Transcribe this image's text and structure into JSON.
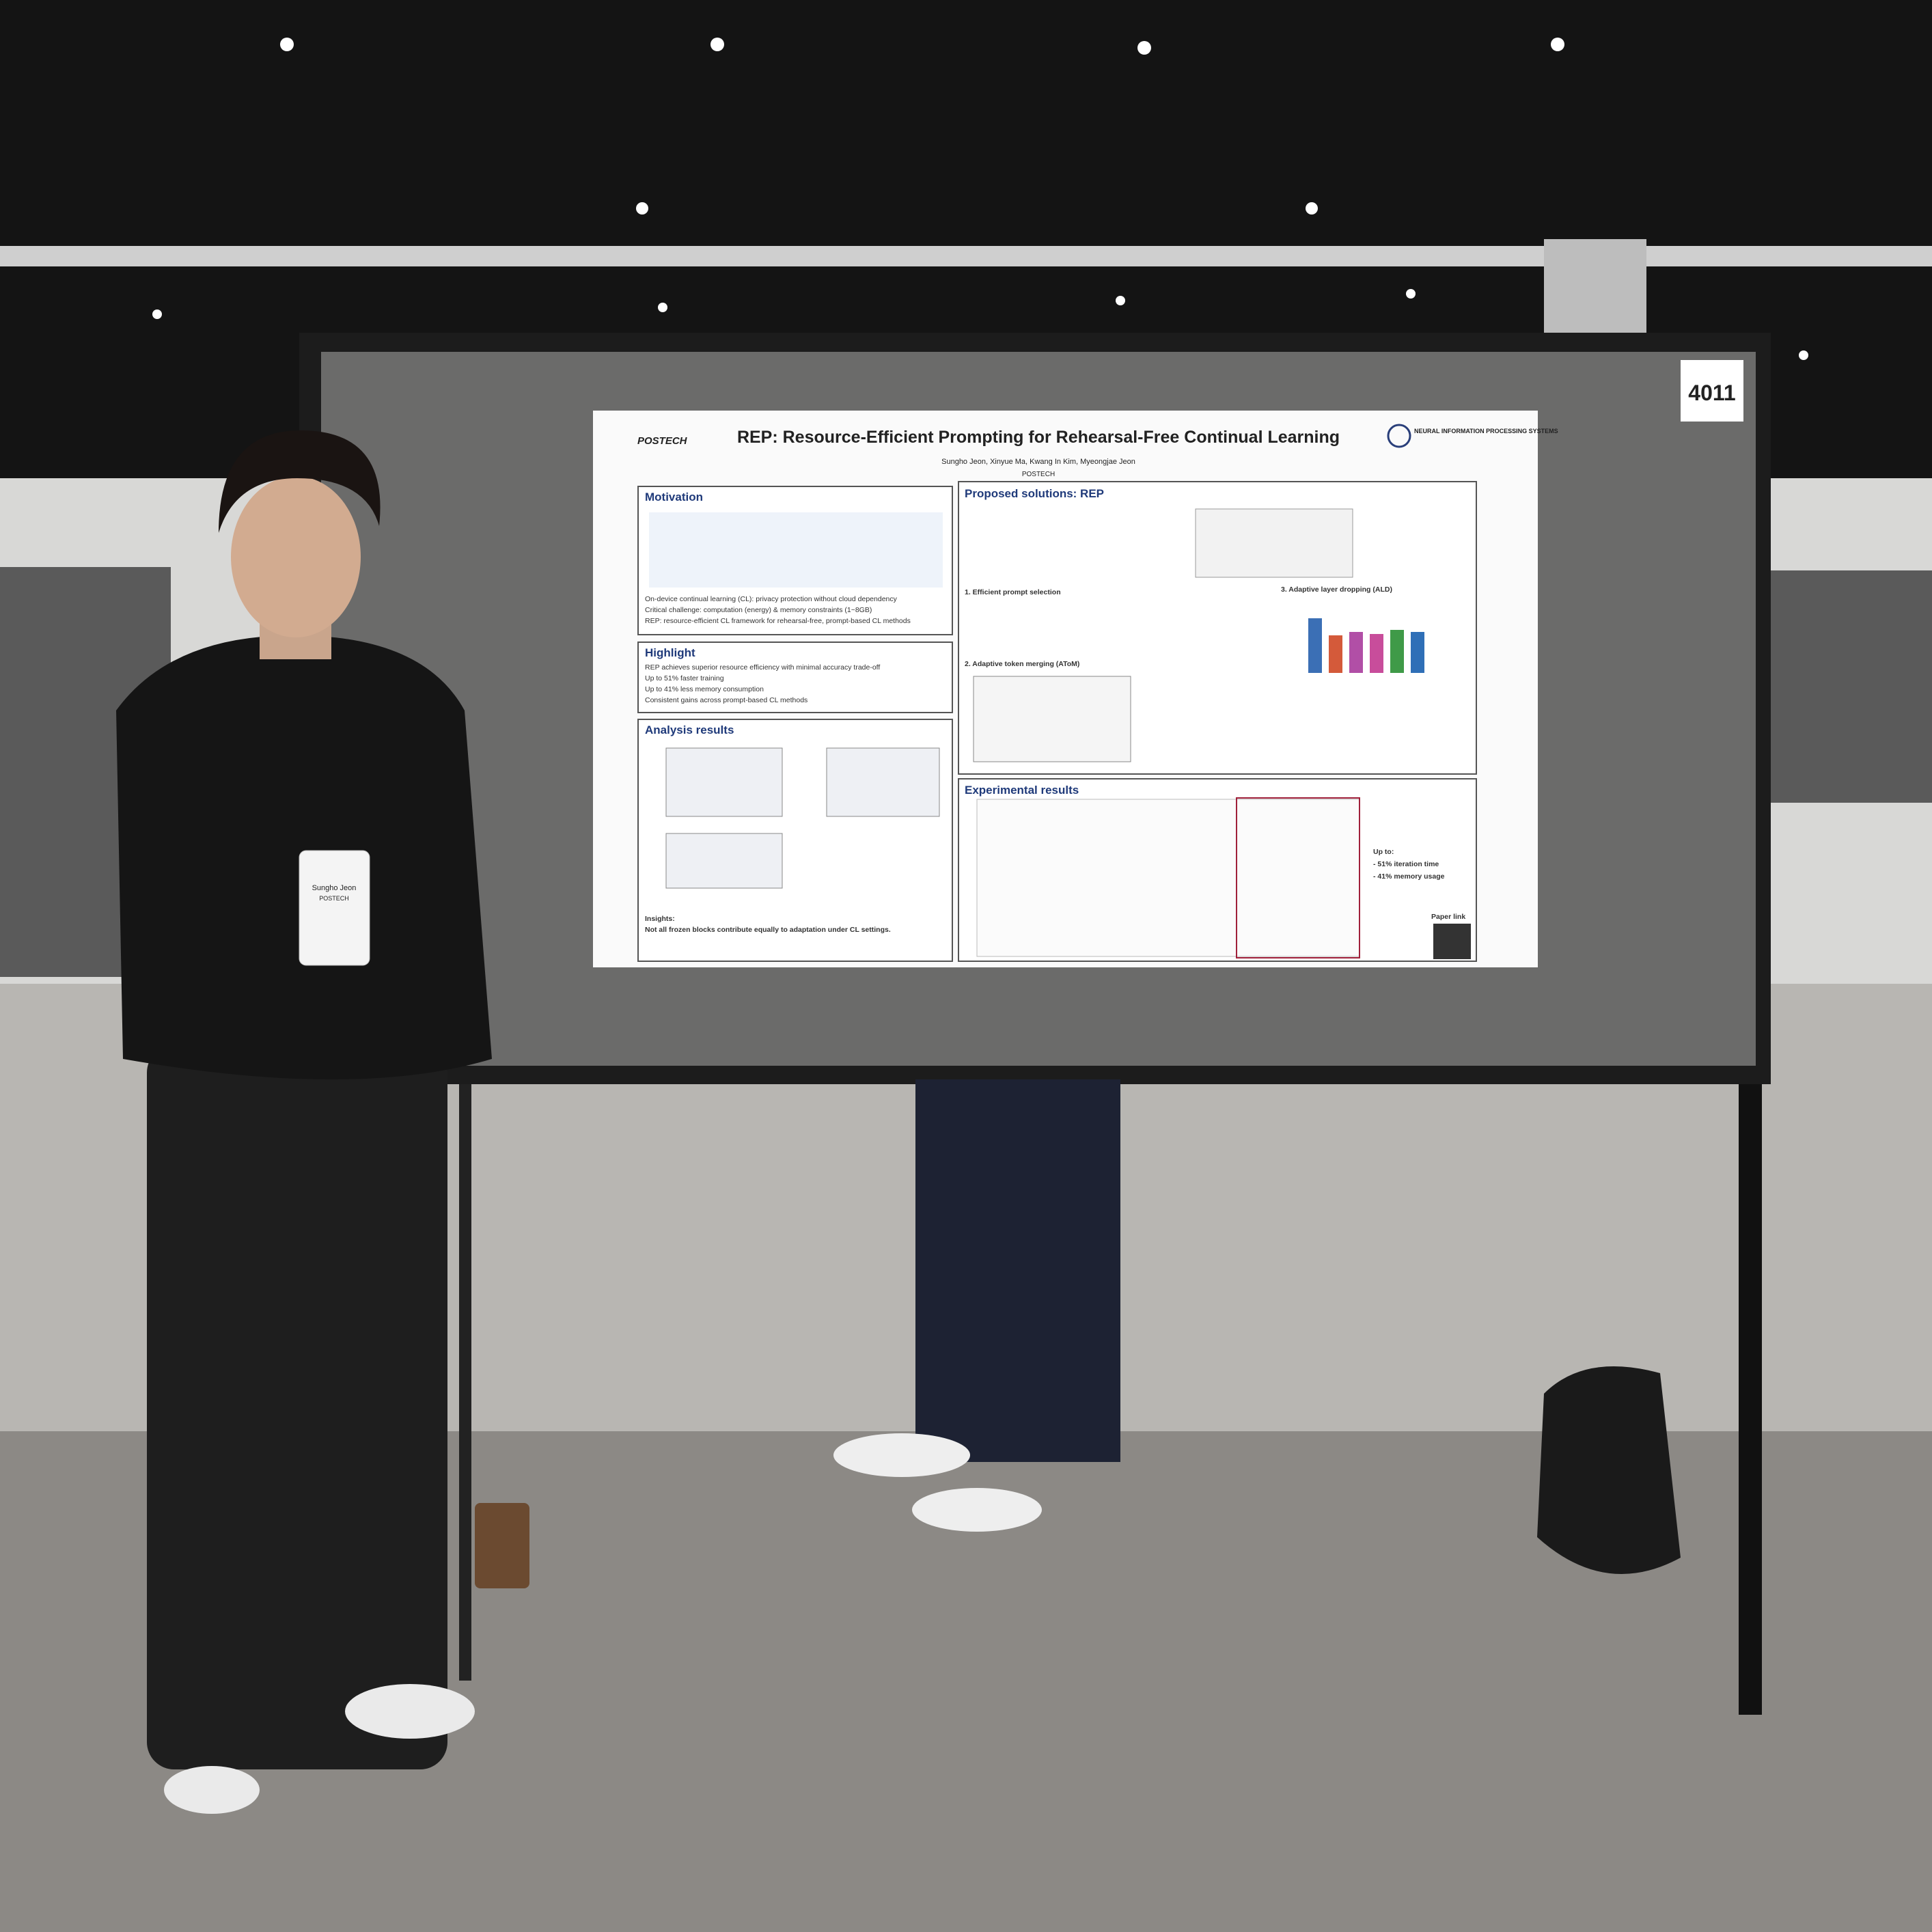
{
  "board_number": "4011",
  "poster": {
    "logo": "POSTECH",
    "title": "REP: Resource-Efficient Prompting for Rehearsal-Free Continual Learning",
    "authors": "Sungho Jeon, Xinyue Ma, Kwang In Kim, Myeongjae Jeon",
    "affiliation": "POSTECH",
    "conference": "NEURAL INFORMATION PROCESSING SYSTEMS",
    "sections": [
      {
        "heading": "Motivation",
        "lines": [
          "On-device continual learning (CL): privacy protection without cloud dependency",
          "Critical challenge: computation (energy) & memory constraints (1~8GB)",
          "REP: resource-efficient CL framework for rehearsal-free, prompt-based CL methods"
        ]
      },
      {
        "heading": "Highlight",
        "lines": [
          "REP achieves superior resource efficiency with minimal accuracy trade-off",
          "Up to 51% faster training",
          "Up to 41% less memory consumption",
          "Consistent gains across prompt-based CL methods"
        ]
      },
      {
        "heading": "Analysis results",
        "lines": [
          "Insights:",
          "Not all frozen blocks contribute equally to adaptation under CL settings."
        ]
      },
      {
        "heading": "Proposed solutions: REP",
        "lines": [
          "1. Efficient prompt selection",
          "2. Adaptive token merging (AToM)",
          "3. Adaptive layer dropping (ALD)"
        ]
      },
      {
        "heading": "Experimental results",
        "lines": [
          "Up to:",
          "- 51% iteration time",
          "- 41% memory usage"
        ]
      }
    ],
    "paper_link": "Paper link"
  },
  "badge": {
    "name": "Sungho Jeon",
    "affiliation": "POSTECH"
  }
}
